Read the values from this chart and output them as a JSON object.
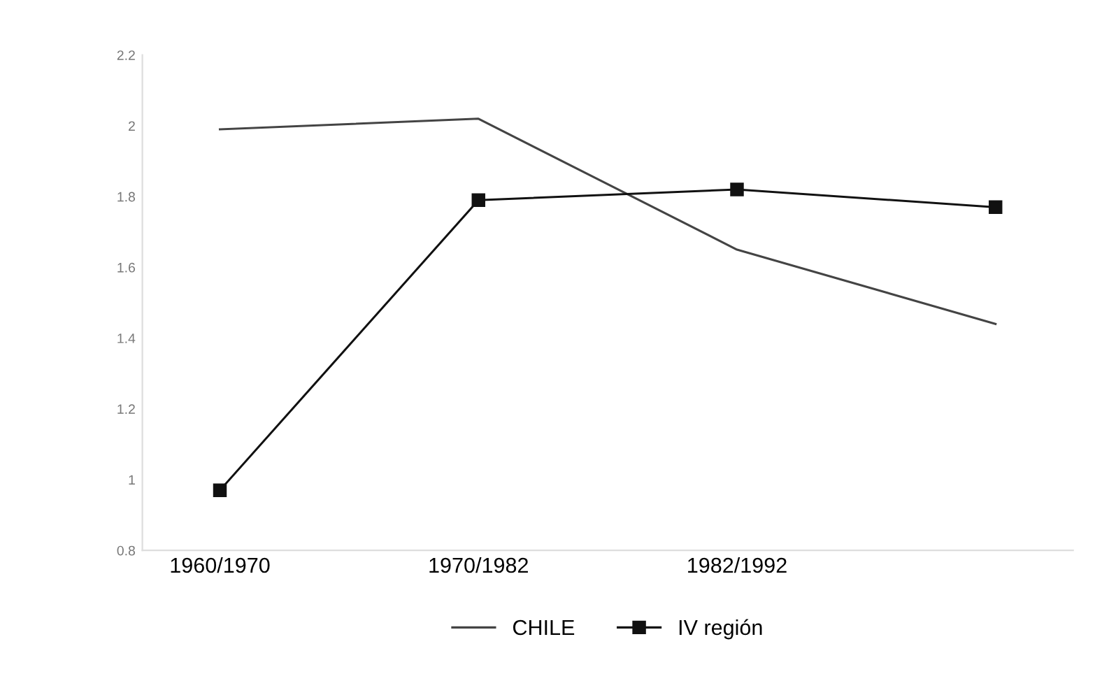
{
  "chart_data": {
    "type": "line",
    "categories": [
      "1960/1970",
      "1970/1982",
      "1982/1992",
      null
    ],
    "series": [
      {
        "name": "CHILE",
        "color": "#444444",
        "marker": "none",
        "values": [
          1.99,
          2.02,
          1.65,
          1.44
        ]
      },
      {
        "name": "IV región",
        "color": "#111111",
        "marker": "square",
        "values": [
          0.97,
          1.79,
          1.82,
          1.77
        ]
      }
    ],
    "ylim": [
      0.8,
      2.2
    ],
    "yticks": [
      0.8,
      1,
      1.2,
      1.4,
      1.6,
      1.8,
      2,
      2.2
    ],
    "grid": false,
    "legend": "bottom"
  }
}
